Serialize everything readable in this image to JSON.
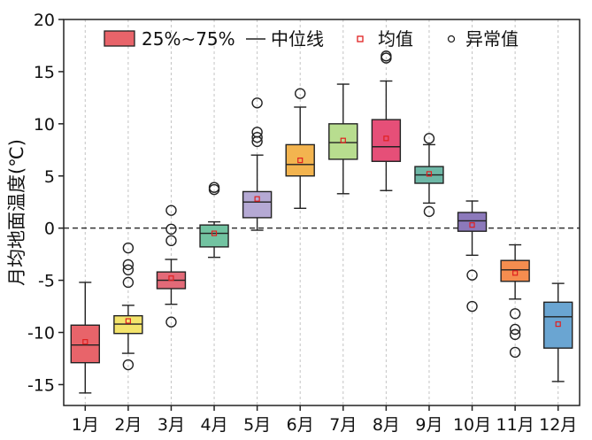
{
  "chart_data": {
    "type": "box",
    "ylabel": "月均地面温度(℃)",
    "xlabel": "",
    "ylim": [
      -17,
      20
    ],
    "yticks": [
      -15,
      -10,
      -5,
      0,
      5,
      10,
      15,
      20
    ],
    "reference_line": 0,
    "grid": "vertical dashed",
    "legend_position": "top",
    "legend": {
      "box": "25%~75%",
      "median": "中位线",
      "mean": "均值",
      "outlier": "异常值"
    },
    "boxes": [
      {
        "category": "1月",
        "color": "#e8646a",
        "whisker_low": -15.8,
        "q1": -12.9,
        "median": -11.2,
        "q3": -9.3,
        "whisker_high": -5.2,
        "mean": -10.9,
        "outliers": []
      },
      {
        "category": "2月",
        "color": "#f4e46c",
        "whisker_low": -12.0,
        "q1": -10.1,
        "median": -9.2,
        "q3": -8.4,
        "whisker_high": -7.4,
        "mean": -8.9,
        "outliers": [
          -13.1,
          -1.9,
          -3.5,
          -4.0,
          -5.2
        ]
      },
      {
        "category": "3月",
        "color": "#e36a78",
        "whisker_low": -7.3,
        "q1": -5.8,
        "median": -5.0,
        "q3": -4.2,
        "whisker_high": -3.0,
        "mean": -4.8,
        "outliers": [
          -9.0,
          -1.2,
          -0.1,
          1.7
        ]
      },
      {
        "category": "4月",
        "color": "#72c3a1",
        "whisker_low": -2.8,
        "q1": -1.8,
        "median": -0.5,
        "q3": 0.3,
        "whisker_high": 0.6,
        "mean": -0.5,
        "outliers": [
          3.7,
          3.9
        ]
      },
      {
        "category": "5月",
        "color": "#b5a9d4",
        "whisker_low": -0.2,
        "q1": 1.0,
        "median": 2.5,
        "q3": 3.5,
        "whisker_high": 7.0,
        "mean": 2.8,
        "outliers": [
          8.3,
          8.7,
          9.2,
          12.0
        ]
      },
      {
        "category": "6月",
        "color": "#f3b44f",
        "whisker_low": 1.9,
        "q1": 5.0,
        "median": 6.1,
        "q3": 8.0,
        "whisker_high": 11.6,
        "mean": 6.5,
        "outliers": [
          12.9
        ]
      },
      {
        "category": "7月",
        "color": "#b8dd8f",
        "whisker_low": 3.3,
        "q1": 6.6,
        "median": 8.2,
        "q3": 10.0,
        "whisker_high": 13.8,
        "mean": 8.4,
        "outliers": []
      },
      {
        "category": "8月",
        "color": "#e64f78",
        "whisker_low": 3.6,
        "q1": 6.4,
        "median": 7.8,
        "q3": 10.4,
        "whisker_high": 14.1,
        "mean": 8.6,
        "outliers": [
          16.3,
          16.5
        ]
      },
      {
        "category": "9月",
        "color": "#6db7a6",
        "whisker_low": 2.4,
        "q1": 4.3,
        "median": 5.1,
        "q3": 5.9,
        "whisker_high": 8.0,
        "mean": 5.2,
        "outliers": [
          1.6,
          8.6
        ]
      },
      {
        "category": "10月",
        "color": "#8c79bb",
        "whisker_low": -2.6,
        "q1": -0.3,
        "median": 0.7,
        "q3": 1.5,
        "whisker_high": 2.6,
        "mean": 0.3,
        "outliers": [
          -4.5,
          -7.5
        ]
      },
      {
        "category": "11月",
        "color": "#f58d4f",
        "whisker_low": -6.8,
        "q1": -5.1,
        "median": -4.0,
        "q3": -3.1,
        "whisker_high": -1.6,
        "mean": -4.3,
        "outliers": [
          -8.2,
          -9.7,
          -10.2,
          -11.9
        ]
      },
      {
        "category": "12月",
        "color": "#6aa5d2",
        "whisker_low": -14.7,
        "q1": -11.5,
        "median": -8.5,
        "q3": -7.1,
        "whisker_high": -5.3,
        "mean": -9.2,
        "outliers": []
      }
    ]
  }
}
